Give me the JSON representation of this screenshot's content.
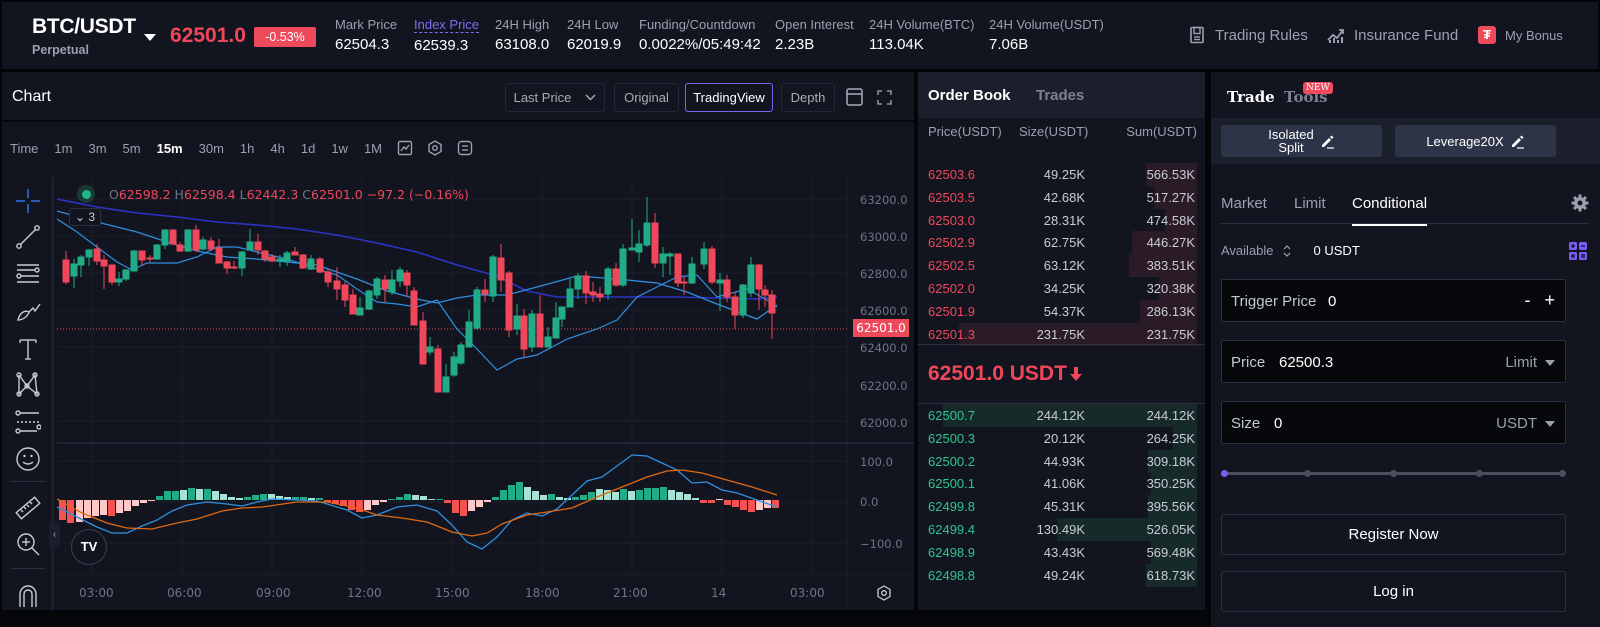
{
  "header": {
    "symbol": "BTC/USDT",
    "contract_type": "Perpetual",
    "last_price": "62501.0",
    "change_pct": "-0.53%",
    "stats": [
      {
        "label": "Mark Price",
        "value": "62504.3"
      },
      {
        "label": "Index Price",
        "value": "62539.3"
      },
      {
        "label": "24H High",
        "value": "63108.0"
      },
      {
        "label": "24H Low",
        "value": "62019.9"
      },
      {
        "label": "Funding/Countdown",
        "value": "0.0022%/05:49:42"
      },
      {
        "label": "Open Interest",
        "value": "2.23B"
      },
      {
        "label": "24H Volume(BTC)",
        "value": "113.04K"
      },
      {
        "label": "24H Volume(USDT)",
        "value": "7.06B"
      }
    ],
    "links": [
      {
        "label": "Trading Rules",
        "icon": "book-icon"
      },
      {
        "label": "Insurance Fund",
        "icon": "chart-up-icon"
      },
      {
        "label": "My Bonus",
        "icon": "tether-icon"
      }
    ]
  },
  "chart": {
    "title": "Chart",
    "price_type": "Last Price",
    "view_buttons": [
      "Original",
      "TradingView",
      "Depth"
    ],
    "active_view": "TradingView",
    "timeframes": [
      "Time",
      "1m",
      "3m",
      "5m",
      "15m",
      "30m",
      "1h",
      "4h",
      "1d",
      "1w",
      "1M"
    ],
    "active_timeframe": "15m",
    "ohlc": {
      "o_label": "O",
      "o": "62598.2",
      "h_label": "H",
      "h": "62598.4",
      "l_label": "L",
      "l": "62442.3",
      "c_label": "C",
      "c": "62501.0",
      "change": "−97.2 (−0.16%)"
    },
    "indicator_toggle": "3",
    "current_price_tag": "62501.0",
    "price_axis": [
      "63200.0",
      "63000.0",
      "62800.0",
      "62600.0",
      "62400.0",
      "62200.0",
      "62000.0"
    ],
    "macd_axis": [
      "100.0",
      "0.0",
      "−100.0"
    ],
    "time_axis": [
      "03:00",
      "06:00",
      "09:00",
      "12:00",
      "15:00",
      "18:00",
      "21:00",
      "14",
      "03:00"
    ],
    "tv_logo": "TV",
    "colors": {
      "up": "#22ab87",
      "down": "#f0475a",
      "ma_fast": "#2f8fe0",
      "ma_slow": "#2b33c8",
      "macd": "#2f8fe0",
      "signal": "#e06a12"
    }
  },
  "orderbook": {
    "tabs": [
      "Order Book",
      "Trades"
    ],
    "active_tab": "Order Book",
    "columns": [
      "Price(USDT)",
      "Size(USDT)",
      "Sum(USDT)"
    ],
    "asks": [
      {
        "price": "62503.6",
        "size": "49.25K",
        "sum": "566.53K",
        "depth": 0.19
      },
      {
        "price": "62503.5",
        "size": "42.68K",
        "sum": "517.27K",
        "depth": 0.16
      },
      {
        "price": "62503.0",
        "size": "28.31K",
        "sum": "474.58K",
        "depth": 0.12
      },
      {
        "price": "62502.9",
        "size": "62.75K",
        "sum": "446.27K",
        "depth": 0.24
      },
      {
        "price": "62502.5",
        "size": "63.12K",
        "sum": "383.51K",
        "depth": 0.25
      },
      {
        "price": "62502.0",
        "size": "34.25K",
        "sum": "320.38K",
        "depth": 0.14
      },
      {
        "price": "62501.9",
        "size": "54.37K",
        "sum": "286.13K",
        "depth": 0.21
      },
      {
        "price": "62501.3",
        "size": "231.75K",
        "sum": "231.75K",
        "depth": 0.88
      }
    ],
    "mid_price": "62501.0 USDT",
    "mid_direction": "down",
    "bids": [
      {
        "price": "62500.7",
        "size": "244.12K",
        "sum": "244.12K",
        "depth": 0.94
      },
      {
        "price": "62500.3",
        "size": "20.12K",
        "sum": "264.25K",
        "depth": 0.09
      },
      {
        "price": "62500.2",
        "size": "44.93K",
        "sum": "309.18K",
        "depth": 0.18
      },
      {
        "price": "62500.1",
        "size": "41.06K",
        "sum": "350.25K",
        "depth": 0.17
      },
      {
        "price": "62499.8",
        "size": "45.31K",
        "sum": "395.56K",
        "depth": 0.18
      },
      {
        "price": "62499.4",
        "size": "130.49K",
        "sum": "526.05K",
        "depth": 0.52
      },
      {
        "price": "62498.9",
        "size": "43.43K",
        "sum": "569.48K",
        "depth": 0.17
      },
      {
        "price": "62498.8",
        "size": "49.24K",
        "sum": "618.73K",
        "depth": 0.19
      }
    ]
  },
  "trade": {
    "tabs": [
      "Trade",
      "Tools"
    ],
    "tools_badge": "NEW",
    "margin_mode_line1": "Isolated",
    "margin_mode_line2": "Split",
    "leverage": "Leverage20X",
    "order_types": [
      "Market",
      "Limit",
      "Conditional"
    ],
    "active_order_type": "Conditional",
    "available_label": "Available",
    "available_value": "0 USDT",
    "trigger_price_label": "Trigger Price",
    "trigger_price_value": "0",
    "price_label": "Price",
    "price_value": "62500.3",
    "price_type": "Limit",
    "size_label": "Size",
    "size_value": "0",
    "size_unit": "USDT",
    "slider_percent": 0,
    "register_label": "Register Now",
    "login_label": "Log in"
  }
}
